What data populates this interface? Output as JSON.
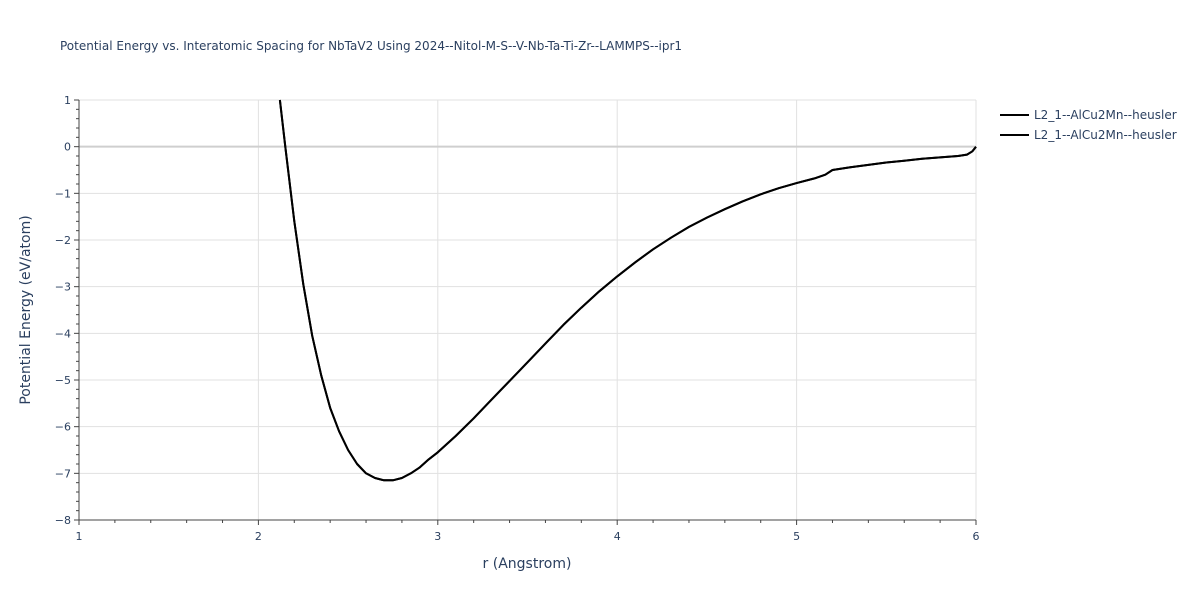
{
  "chart_data": {
    "type": "line",
    "title": "Potential Energy vs. Interatomic Spacing for NbTaV2 Using 2024--Nitol-M-S--V-Nb-Ta-Ti-Zr--LAMMPS--ipr1",
    "xlabel": "r (Angstrom)",
    "ylabel": "Potential Energy (eV/atom)",
    "xlim": [
      1,
      6
    ],
    "ylim": [
      -8,
      1
    ],
    "x_ticks": [
      1,
      2,
      3,
      4,
      5,
      6
    ],
    "y_ticks": [
      1,
      0,
      -1,
      -2,
      -3,
      -4,
      -5,
      -6,
      -7,
      -8
    ],
    "grid": true,
    "legend_position": "top-right",
    "series": [
      {
        "name": "L2_1--AlCu2Mn--heusler",
        "color": "#000000",
        "x": [
          2.12,
          2.15,
          2.2,
          2.25,
          2.3,
          2.35,
          2.4,
          2.45,
          2.5,
          2.55,
          2.6,
          2.65,
          2.7,
          2.75,
          2.8,
          2.85,
          2.9,
          2.95,
          3.0,
          3.1,
          3.2,
          3.3,
          3.4,
          3.5,
          3.6,
          3.7,
          3.8,
          3.9,
          4.0,
          4.1,
          4.2,
          4.3,
          4.4,
          4.5,
          4.6,
          4.7,
          4.8,
          4.9,
          5.0,
          5.1,
          5.16,
          5.2,
          5.3,
          5.4,
          5.5,
          5.6,
          5.7,
          5.8,
          5.9,
          5.95,
          5.98,
          6.0
        ],
        "y": [
          1.0,
          0.0,
          -1.6,
          -2.95,
          -4.05,
          -4.9,
          -5.6,
          -6.1,
          -6.5,
          -6.8,
          -7.0,
          -7.1,
          -7.15,
          -7.15,
          -7.1,
          -7.0,
          -6.87,
          -6.7,
          -6.55,
          -6.2,
          -5.82,
          -5.42,
          -5.02,
          -4.62,
          -4.22,
          -3.82,
          -3.45,
          -3.1,
          -2.78,
          -2.48,
          -2.2,
          -1.95,
          -1.72,
          -1.52,
          -1.34,
          -1.17,
          -1.02,
          -0.89,
          -0.78,
          -0.68,
          -0.6,
          -0.5,
          -0.44,
          -0.39,
          -0.34,
          -0.3,
          -0.26,
          -0.23,
          -0.2,
          -0.17,
          -0.1,
          0.0
        ]
      },
      {
        "name": "L2_1--AlCu2Mn--heusler",
        "color": "#000000",
        "x": [
          2.12,
          2.15,
          2.2,
          2.25,
          2.3,
          2.35,
          2.4,
          2.45,
          2.5,
          2.55,
          2.6,
          2.65,
          2.7,
          2.75,
          2.8,
          2.85,
          2.9,
          2.95,
          3.0,
          3.1,
          3.2,
          3.3,
          3.4,
          3.5,
          3.6,
          3.7,
          3.8,
          3.9,
          4.0,
          4.1,
          4.2,
          4.3,
          4.4,
          4.5,
          4.6,
          4.7,
          4.8,
          4.9,
          5.0,
          5.1,
          5.16,
          5.2,
          5.3,
          5.4,
          5.5,
          5.6,
          5.7,
          5.8,
          5.9,
          5.95,
          5.98,
          6.0
        ],
        "y": [
          1.0,
          0.0,
          -1.6,
          -2.95,
          -4.05,
          -4.9,
          -5.6,
          -6.1,
          -6.5,
          -6.8,
          -7.0,
          -7.1,
          -7.15,
          -7.15,
          -7.1,
          -7.0,
          -6.87,
          -6.7,
          -6.55,
          -6.2,
          -5.82,
          -5.42,
          -5.02,
          -4.62,
          -4.22,
          -3.82,
          -3.45,
          -3.1,
          -2.78,
          -2.48,
          -2.2,
          -1.95,
          -1.72,
          -1.52,
          -1.34,
          -1.17,
          -1.02,
          -0.89,
          -0.78,
          -0.68,
          -0.6,
          -0.5,
          -0.44,
          -0.39,
          -0.34,
          -0.3,
          -0.26,
          -0.23,
          -0.2,
          -0.17,
          -0.1,
          0.0
        ]
      }
    ]
  }
}
